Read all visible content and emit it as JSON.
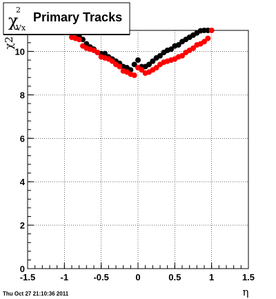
{
  "title": {
    "symbol": "χ",
    "superscript": "2",
    "subscript": "Vx",
    "text": "Primary Tracks"
  },
  "footer": "Thu Oct 27 21:10:36 2011",
  "chart_data": {
    "type": "scatter",
    "title": "Primary Tracks",
    "xlabel": "η",
    "ylabel": "χ2",
    "xlim": [
      -1.5,
      1.5
    ],
    "ylim": [
      0,
      11
    ],
    "xticks": [
      -1.5,
      -1,
      -0.5,
      0,
      0.5,
      1,
      1.5
    ],
    "xtick_labels": [
      "-1.5",
      "-1",
      "-0.5",
      "0",
      "0.5",
      "1",
      "1.5"
    ],
    "yticks": [
      0,
      2,
      4,
      6,
      8,
      10
    ],
    "ytick_labels": [
      "0",
      "2",
      "4",
      "6",
      "8",
      "10"
    ],
    "grid": true,
    "series": [
      {
        "color": "#000000",
        "x": [
          -0.95,
          -0.9,
          -0.85,
          -0.8,
          -0.75,
          -0.7,
          -0.65,
          -0.6,
          -0.55,
          -0.5,
          -0.45,
          -0.4,
          -0.35,
          -0.3,
          -0.25,
          -0.2,
          -0.15,
          -0.1,
          -0.05,
          0.0,
          0.05,
          0.1,
          0.15,
          0.2,
          0.25,
          0.3,
          0.35,
          0.4,
          0.45,
          0.5,
          0.55,
          0.6,
          0.65,
          0.7,
          0.75,
          0.8,
          0.85,
          0.9,
          0.95
        ],
        "y": [
          11.0,
          10.95,
          10.85,
          10.7,
          10.55,
          10.35,
          10.2,
          10.1,
          9.95,
          9.9,
          9.9,
          9.75,
          9.65,
          9.55,
          9.45,
          9.3,
          9.25,
          9.15,
          9.4,
          9.6,
          9.3,
          9.3,
          9.4,
          9.55,
          9.7,
          9.8,
          9.95,
          10.05,
          10.1,
          10.25,
          10.3,
          10.45,
          10.55,
          10.65,
          10.75,
          10.85,
          10.95,
          11.0,
          11.05
        ]
      },
      {
        "color": "#ff0000",
        "x": [
          -0.9,
          -0.85,
          -0.8,
          -0.75,
          -0.7,
          -0.65,
          -0.6,
          -0.55,
          -0.5,
          -0.45,
          -0.4,
          -0.35,
          -0.3,
          -0.25,
          -0.2,
          -0.15,
          -0.1,
          -0.05,
          0.0,
          0.05,
          0.1,
          0.15,
          0.2,
          0.25,
          0.3,
          0.35,
          0.4,
          0.45,
          0.5,
          0.55,
          0.6,
          0.65,
          0.7,
          0.75,
          0.8,
          0.85,
          0.9,
          0.95,
          1.0
        ],
        "y": [
          10.65,
          10.6,
          10.55,
          10.25,
          10.15,
          10.1,
          10.05,
          9.95,
          9.75,
          9.7,
          9.65,
          9.55,
          9.4,
          9.3,
          9.1,
          9.05,
          8.95,
          8.9,
          9.25,
          9.15,
          9.0,
          9.05,
          9.15,
          9.25,
          9.4,
          9.5,
          9.55,
          9.6,
          9.65,
          9.75,
          9.8,
          9.95,
          10.05,
          10.15,
          10.3,
          10.35,
          10.45,
          10.6,
          11.0
        ]
      }
    ]
  }
}
